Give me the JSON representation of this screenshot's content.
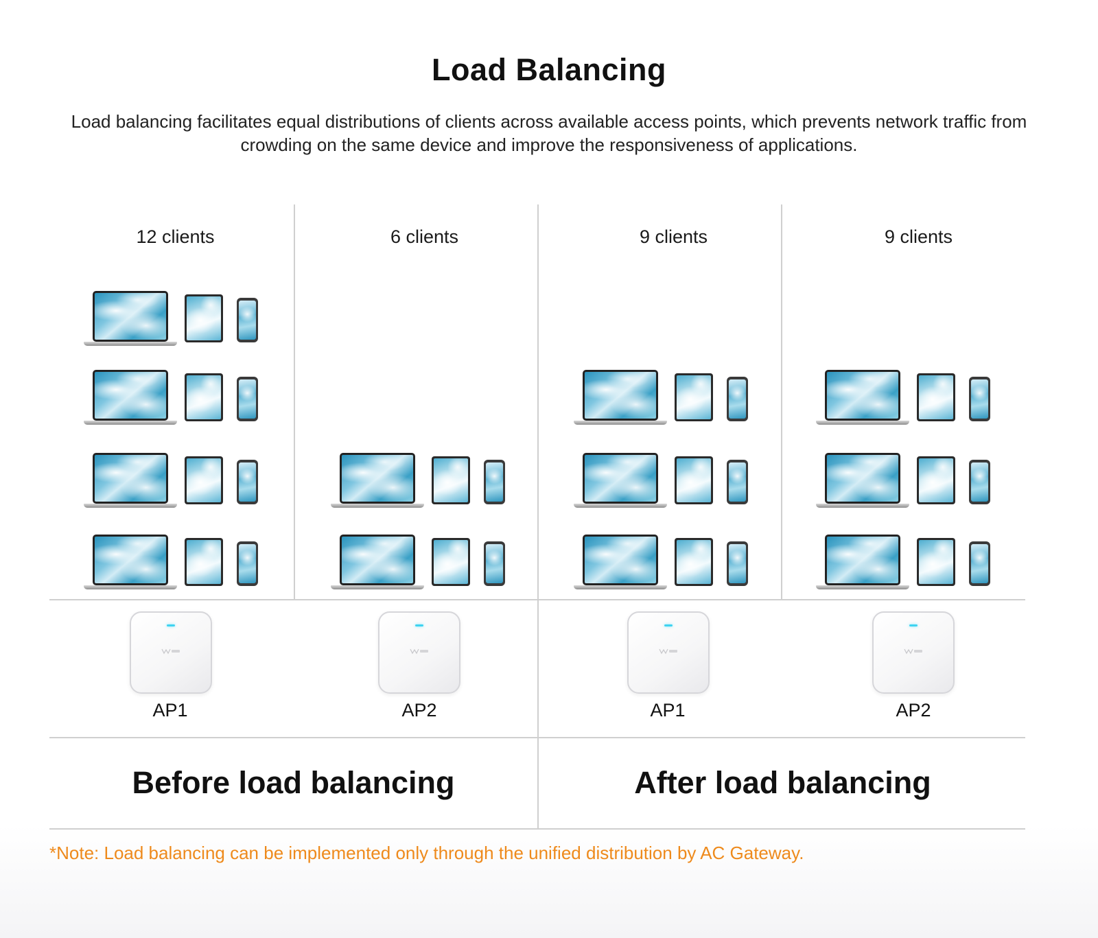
{
  "header": {
    "title": "Load Balancing",
    "description": "Load balancing facilitates equal distributions of clients across available access points, which prevents network traffic from crowding on the same device and improve the responsiveness of applications."
  },
  "columns": [
    {
      "clients_label": "12 clients",
      "client_count": 12,
      "device_groups": 4,
      "ap_label": "AP1"
    },
    {
      "clients_label": "6 clients",
      "client_count": 6,
      "device_groups": 2,
      "ap_label": "AP2"
    },
    {
      "clients_label": "9 clients",
      "client_count": 9,
      "device_groups": 3,
      "ap_label": "AP1"
    },
    {
      "clients_label": "9 clients",
      "client_count": 9,
      "device_groups": 3,
      "ap_label": "AP2"
    }
  ],
  "sections": {
    "before": "Before load balancing",
    "after": "After load balancing"
  },
  "note": "*Note: Load balancing can be implemented only through the unified distribution by AC Gateway.",
  "colors": {
    "note": "#ee8a1c",
    "divider": "#cfcfcf",
    "ap_led": "#3fd3f0"
  },
  "icons": {
    "laptop": "laptop-icon",
    "tablet": "tablet-icon",
    "phone": "phone-icon",
    "access_point": "access-point-icon"
  }
}
